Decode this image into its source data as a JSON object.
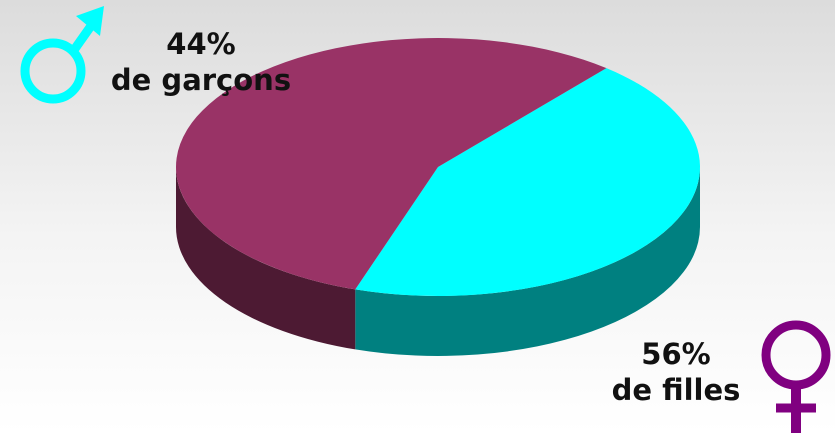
{
  "chart_data": {
    "type": "pie",
    "style": "3d",
    "slices": [
      {
        "pct_label": "44%",
        "desc": "de garçons",
        "value": 44,
        "top_color": "#00ffff",
        "side_color": "#008080",
        "icon": "male-symbol-icon"
      },
      {
        "pct_label": "56%",
        "desc": "de filles",
        "value": 56,
        "top_color": "#993366",
        "side_color": "#4d1a33",
        "icon": "female-symbol-icon"
      }
    ]
  },
  "colors": {
    "male_icon": "#00ffff",
    "female_icon": "#800080"
  }
}
